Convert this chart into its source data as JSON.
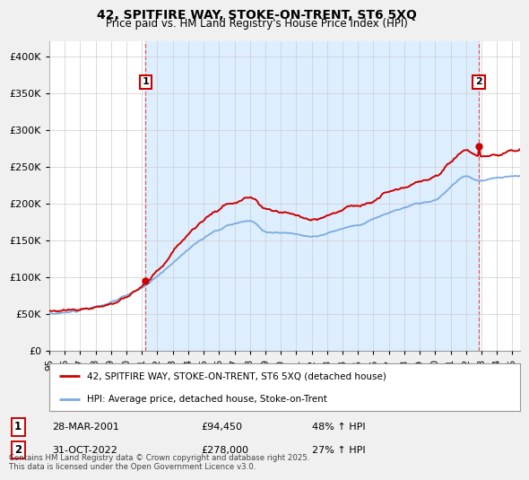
{
  "title_line1": "42, SPITFIRE WAY, STOKE-ON-TRENT, ST6 5XQ",
  "title_line2": "Price paid vs. HM Land Registry's House Price Index (HPI)",
  "ytick_values": [
    0,
    50000,
    100000,
    150000,
    200000,
    250000,
    300000,
    350000,
    400000
  ],
  "ylim": [
    0,
    420000
  ],
  "xlim_start": 1995.0,
  "xlim_end": 2025.5,
  "xtick_years": [
    1995,
    1996,
    1997,
    1998,
    1999,
    2000,
    2001,
    2002,
    2003,
    2004,
    2005,
    2006,
    2007,
    2008,
    2009,
    2010,
    2011,
    2012,
    2013,
    2014,
    2015,
    2016,
    2017,
    2018,
    2019,
    2020,
    2021,
    2022,
    2023,
    2024,
    2025
  ],
  "sale1_x": 2001.24,
  "sale1_y": 94450,
  "sale2_x": 2022.83,
  "sale2_y": 278000,
  "sale_color": "#cc0000",
  "hpi_color": "#7aabe0",
  "vline_color": "#dd4444",
  "shade_color": "#ddeeff",
  "legend_label1": "42, SPITFIRE WAY, STOKE-ON-TRENT, ST6 5XQ (detached house)",
  "legend_label2": "HPI: Average price, detached house, Stoke-on-Trent",
  "annotation1_date": "28-MAR-2001",
  "annotation1_price": "£94,450",
  "annotation1_hpi": "48% ↑ HPI",
  "annotation2_date": "31-OCT-2022",
  "annotation2_price": "£278,000",
  "annotation2_hpi": "27% ↑ HPI",
  "footer": "Contains HM Land Registry data © Crown copyright and database right 2025.\nThis data is licensed under the Open Government Licence v3.0.",
  "background_color": "#f0f0f0",
  "plot_bg_color": "#ffffff"
}
